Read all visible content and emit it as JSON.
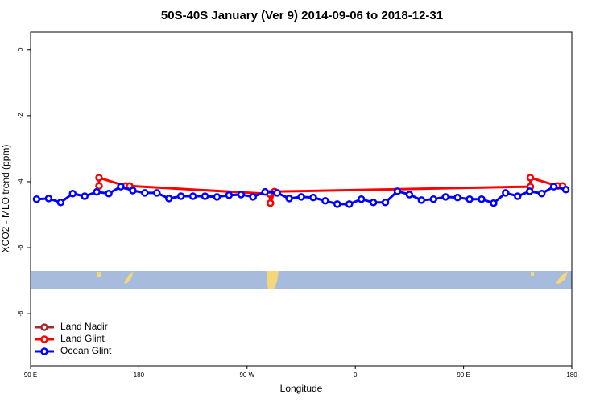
{
  "chart_data": {
    "type": "line",
    "title": "50S-40S January (Ver 9)   2014-09-06 to 2018-12-31",
    "x_label": "Longitude",
    "y_label": "XCO2 - MLO trend (ppm)",
    "xlim": [
      90,
      540
    ],
    "xticks": [
      {
        "value": 90,
        "label": "90 E"
      },
      {
        "value": 180,
        "label": "180"
      },
      {
        "value": 270,
        "label": "90 W"
      },
      {
        "value": 360,
        "label": "0"
      },
      {
        "value": 450,
        "label": "90 E"
      },
      {
        "value": 540,
        "label": "180"
      }
    ],
    "ylim": [
      -9.58,
      0.53
    ],
    "yticks": [
      0,
      -2,
      -4,
      -6,
      -8
    ],
    "legend": "bottom-left",
    "series": [
      {
        "name": "Land Nadir",
        "color": "#a52a2a",
        "x": [],
        "values": []
      },
      {
        "name": "Land Glint",
        "color": "#ff0000",
        "x": [
          146.9,
          146.9,
          169.0,
          172.3,
          288.7,
          289.4,
          292.8,
          505.5,
          505.5,
          528.3,
          532.3
        ],
        "values": [
          -4.13,
          -3.88,
          -4.13,
          -4.13,
          -4.37,
          -4.65,
          -4.3,
          -4.15,
          -3.88,
          -4.13,
          -4.13
        ]
      },
      {
        "name": "Ocean Glint",
        "color": "#0000ff",
        "x": [
          95,
          105,
          115,
          125,
          135,
          145,
          155,
          165,
          175,
          185,
          195,
          205,
          215,
          225,
          235,
          245,
          255,
          265,
          275,
          285,
          295,
          305,
          315,
          325,
          335,
          345,
          355,
          365,
          375,
          385,
          395,
          405,
          415,
          425,
          435,
          445,
          455,
          465,
          475,
          485,
          495,
          505,
          515,
          525,
          535
        ],
        "values": [
          -4.53,
          -4.51,
          -4.63,
          -4.36,
          -4.44,
          -4.31,
          -4.36,
          -4.15,
          -4.27,
          -4.34,
          -4.34,
          -4.51,
          -4.44,
          -4.44,
          -4.44,
          -4.46,
          -4.41,
          -4.39,
          -4.46,
          -4.31,
          -4.34,
          -4.51,
          -4.46,
          -4.48,
          -4.58,
          -4.68,
          -4.68,
          -4.53,
          -4.63,
          -4.63,
          -4.29,
          -4.39,
          -4.56,
          -4.53,
          -4.46,
          -4.48,
          -4.53,
          -4.53,
          -4.65,
          -4.34,
          -4.44,
          -4.29,
          -4.36,
          -4.15,
          -4.24
        ]
      }
    ]
  }
}
